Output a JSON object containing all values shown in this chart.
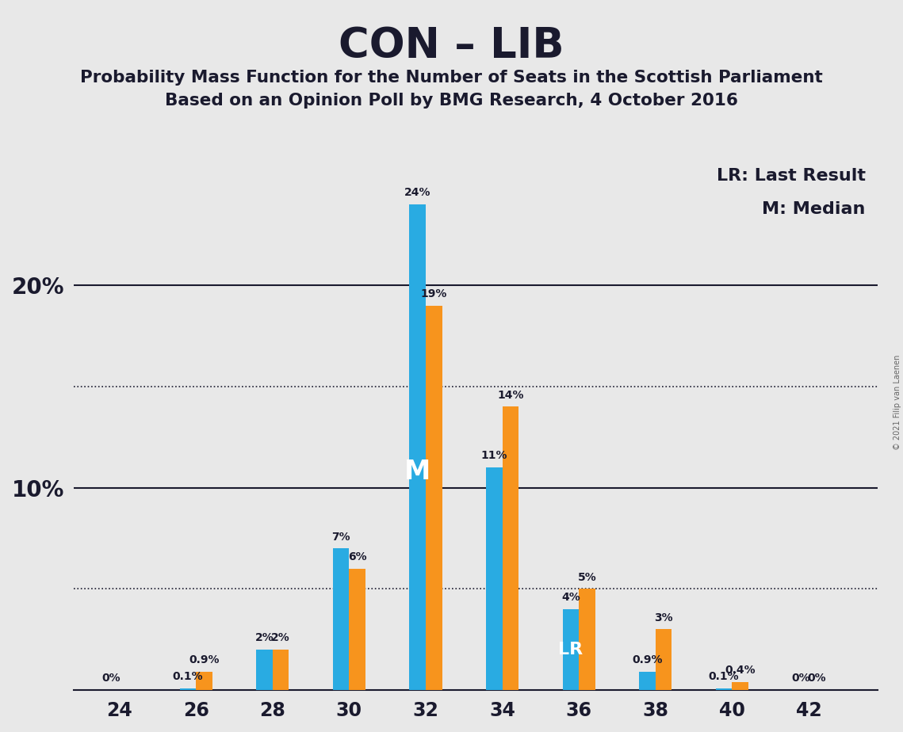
{
  "title": "CON – LIB",
  "subtitle1": "Probability Mass Function for the Number of Seats in the Scottish Parliament",
  "subtitle2": "Based on an Opinion Poll by BMG Research, 4 October 2016",
  "copyright": "© 2021 Filip van Laenen",
  "legend_lr": "LR: Last Result",
  "legend_m": "M: Median",
  "seats_even": [
    24,
    26,
    28,
    30,
    32,
    34,
    36,
    38,
    40,
    42
  ],
  "blue_values": [
    0.0,
    0.1,
    2.0,
    7.0,
    24.0,
    11.0,
    4.0,
    0.9,
    0.1,
    0.0
  ],
  "orange_values": [
    0.0,
    0.9,
    2.0,
    6.0,
    19.0,
    14.0,
    5.0,
    3.0,
    0.4,
    0.0
  ],
  "blue_labels": [
    "0%",
    "0.1%",
    "2%",
    "7%",
    "24%",
    "11%",
    "4%",
    "0.9%",
    "0.1%",
    "0%"
  ],
  "orange_labels": [
    "",
    "0.9%",
    "2%",
    "6%",
    "19%",
    "14%",
    "5%",
    "3%",
    "0.4%",
    "0%"
  ],
  "blue_label_show": [
    true,
    true,
    true,
    true,
    true,
    true,
    true,
    true,
    true,
    true
  ],
  "orange_label_show": [
    false,
    true,
    true,
    true,
    true,
    true,
    true,
    true,
    true,
    true
  ],
  "median_index": 4,
  "lr_index": 6,
  "blue_color": "#29ABE2",
  "orange_color": "#F7941D",
  "background_color": "#E8E8E8",
  "ylim": [
    0,
    27
  ],
  "dotted_lines": [
    5.0,
    15.0
  ],
  "solid_lines": [
    10.0,
    20.0
  ],
  "bar_width": 0.85
}
